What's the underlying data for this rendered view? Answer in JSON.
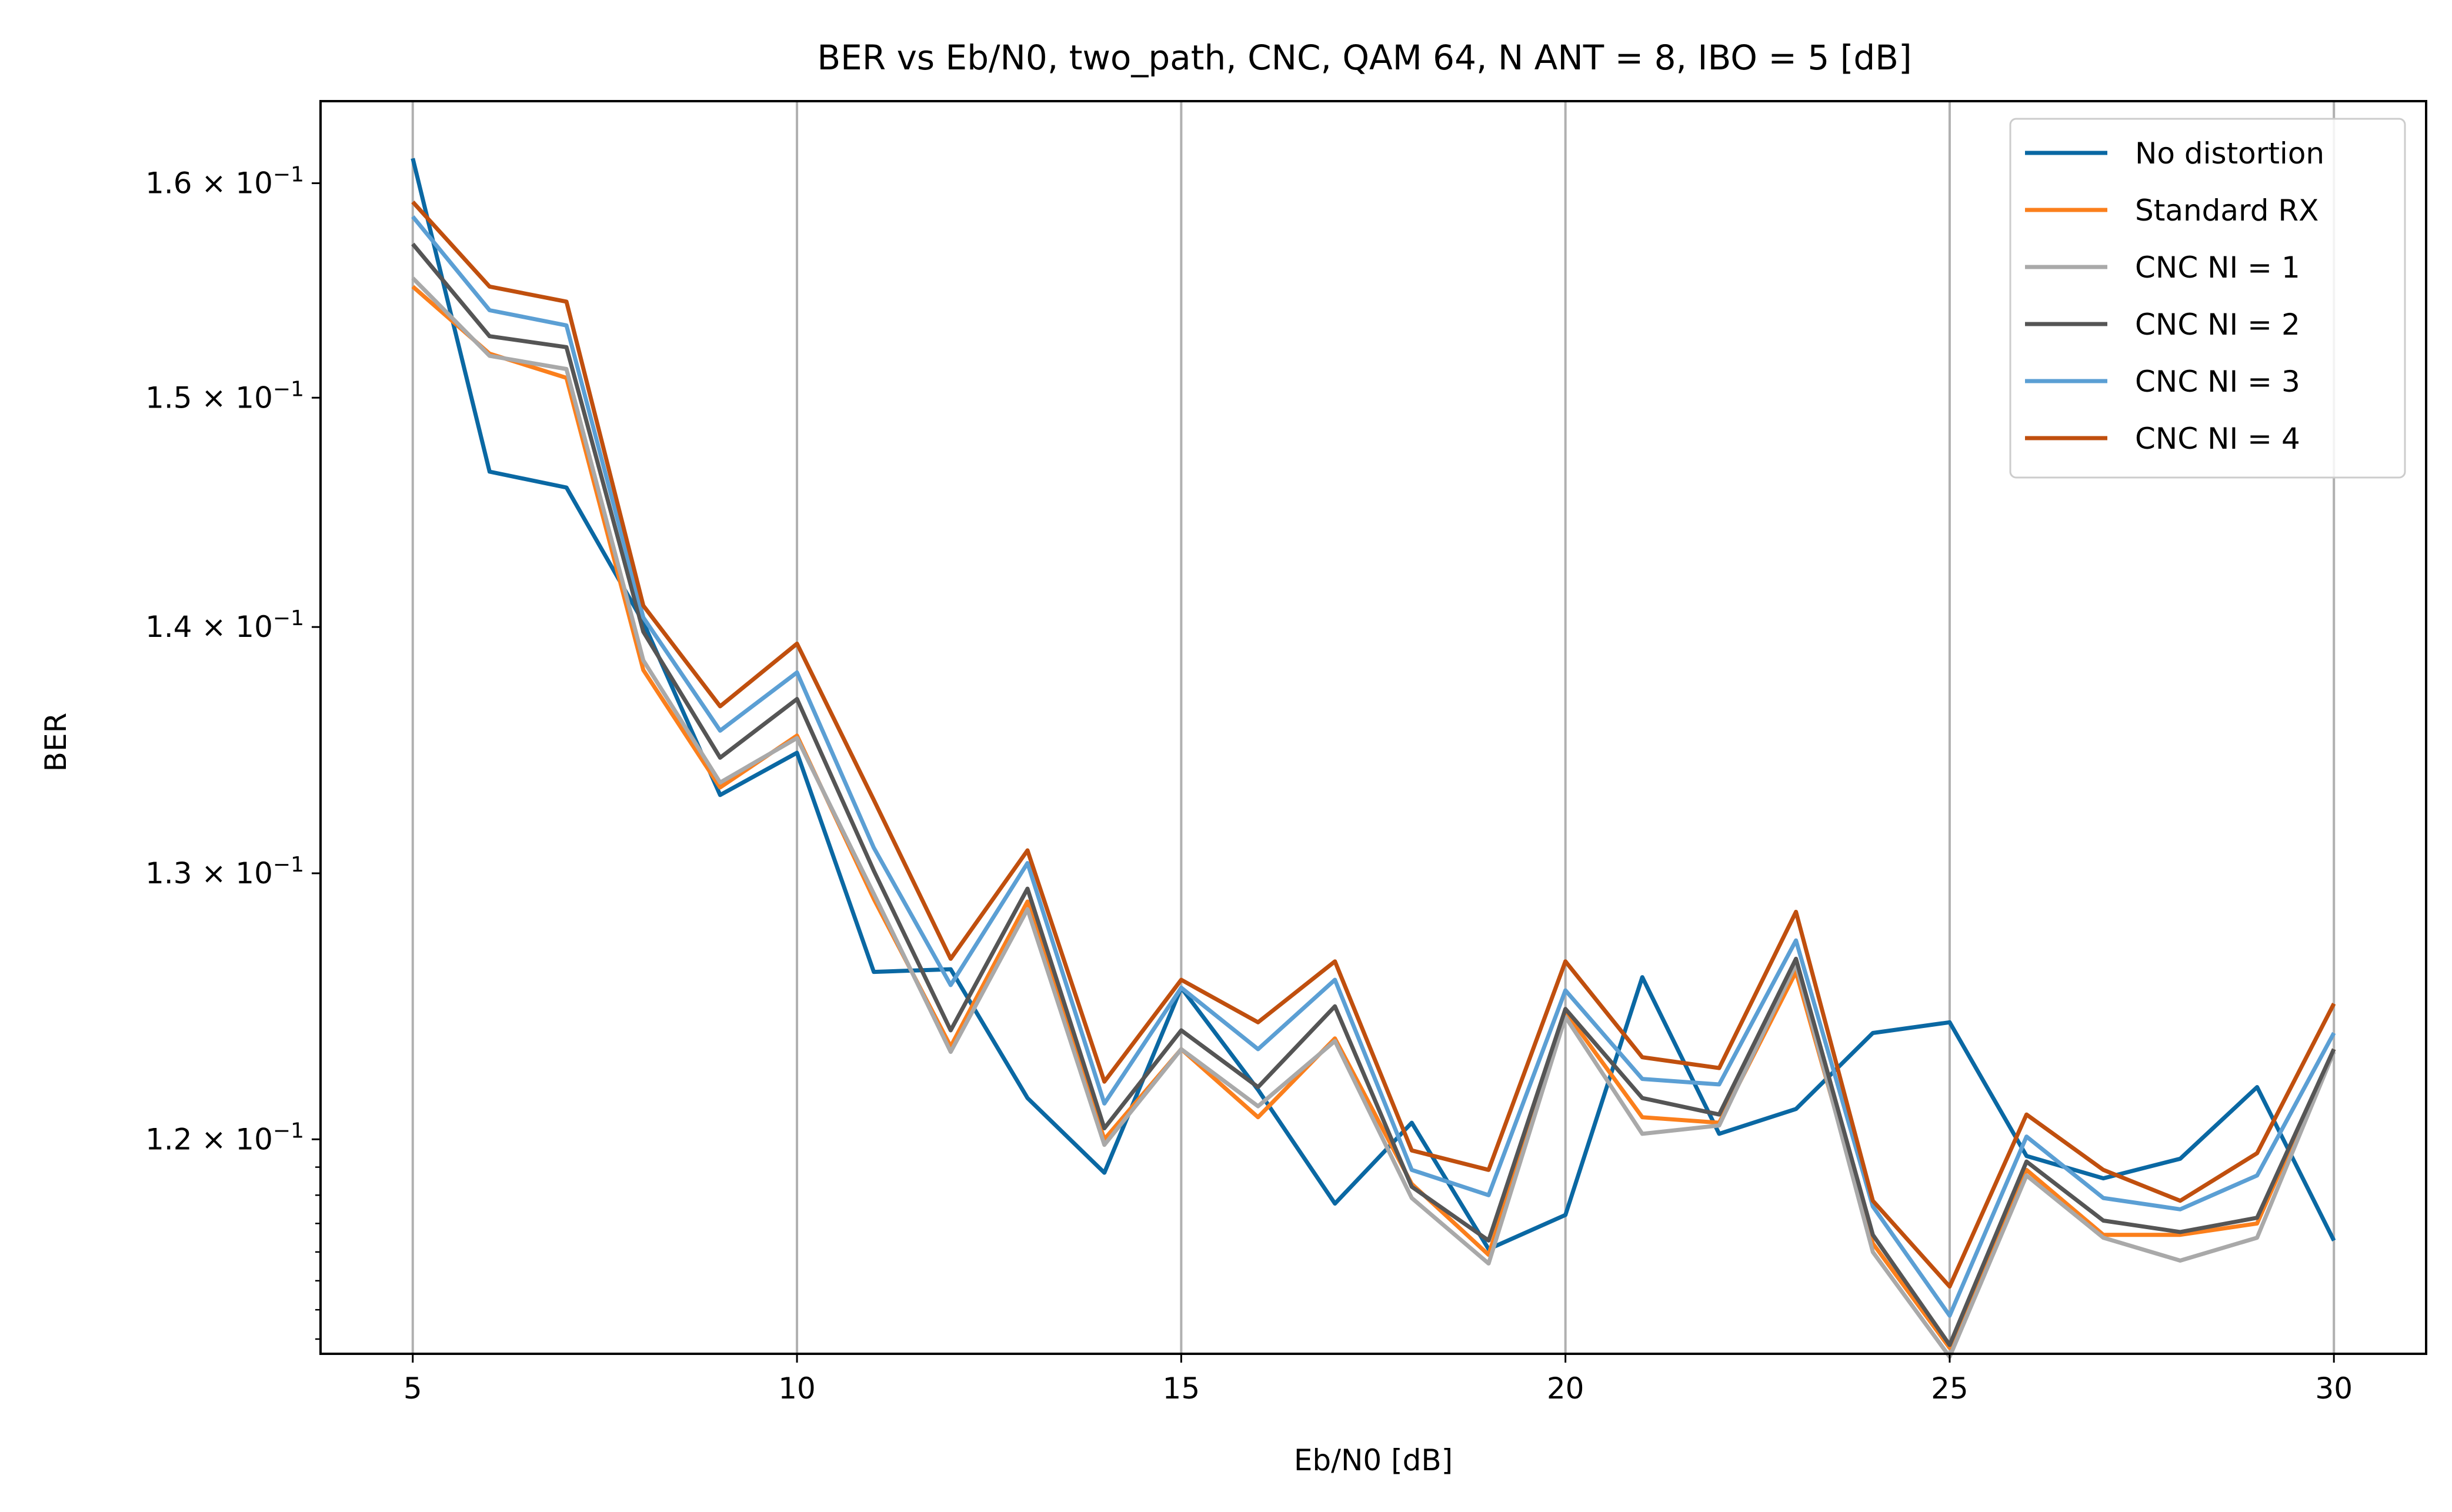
{
  "chart_data": {
    "type": "line",
    "title": "BER vs Eb/N0, two_path, CNC, QAM 64, N ANT = 8, IBO = 5 [dB]",
    "xlabel": "Eb/N0 [dB]",
    "ylabel": "BER",
    "y_scale": "log",
    "xlim": [
      3.8,
      31.2
    ],
    "ylim": [
      0.1125,
      0.164
    ],
    "grid": "vertical major lines",
    "legend_position": "upper-right",
    "x_ticks": [
      5,
      10,
      15,
      20,
      25,
      30
    ],
    "y_ticks": [
      {
        "value": 0.12,
        "label": "1.2 × 10^-1"
      },
      {
        "value": 0.13,
        "label": "1.3 × 10^-1"
      },
      {
        "value": 0.14,
        "label": "1.4 × 10^-1"
      },
      {
        "value": 0.15,
        "label": "1.5 × 10^-1"
      },
      {
        "value": 0.16,
        "label": "1.6 × 10^-1"
      }
    ],
    "x": [
      5,
      6,
      7,
      8,
      9,
      10,
      11,
      12,
      13,
      14,
      15,
      16,
      17,
      18,
      19,
      20,
      21,
      22,
      23,
      24,
      25,
      26,
      27,
      28,
      29,
      30
    ],
    "series": [
      {
        "name": "No distortion",
        "color": "#0a68a3",
        "values": [
          0.1612,
          0.1467,
          0.146,
          0.1402,
          0.1331,
          0.1348,
          0.1262,
          0.1263,
          0.1215,
          0.1188,
          0.1256,
          0.1218,
          0.1177,
          0.1206,
          0.1161,
          0.1173,
          0.126,
          0.1202,
          0.1211,
          0.1239,
          0.1243,
          0.1194,
          0.1186,
          0.1193,
          0.1219,
          0.1164
        ]
      },
      {
        "name": "Standard RX",
        "color": "#fb7f1c",
        "values": [
          0.1551,
          0.152,
          0.1509,
          0.1382,
          0.1334,
          0.1355,
          0.129,
          0.1234,
          0.1289,
          0.12,
          0.1233,
          0.1208,
          0.1237,
          0.1184,
          0.1159,
          0.1247,
          0.1208,
          0.1206,
          0.1262,
          0.1163,
          0.1127,
          0.1189,
          0.1166,
          0.1166,
          0.117,
          0.1233
        ]
      },
      {
        "name": "CNC NI = 1",
        "color": "#a9a9a9",
        "values": [
          0.1555,
          0.1519,
          0.1513,
          0.1386,
          0.1336,
          0.1354,
          0.1292,
          0.1232,
          0.1286,
          0.1198,
          0.1233,
          0.1212,
          0.1236,
          0.1179,
          0.1156,
          0.1245,
          0.1202,
          0.1205,
          0.1265,
          0.116,
          0.1124,
          0.1187,
          0.1165,
          0.1157,
          0.1165,
          0.1232
        ]
      },
      {
        "name": "CNC NI = 2",
        "color": "#555555",
        "values": [
          0.1571,
          0.1528,
          0.1523,
          0.1398,
          0.1346,
          0.137,
          0.1301,
          0.124,
          0.1294,
          0.1204,
          0.124,
          0.1219,
          0.1249,
          0.1183,
          0.1164,
          0.1248,
          0.1215,
          0.1209,
          0.1267,
          0.1166,
          0.1128,
          0.1192,
          0.1171,
          0.1167,
          0.1172,
          0.1233
        ]
      },
      {
        "name": "CNC NI = 3",
        "color": "#5b9fd4",
        "values": [
          0.1584,
          0.154,
          0.1533,
          0.1404,
          0.1357,
          0.1381,
          0.131,
          0.1257,
          0.1304,
          0.1213,
          0.1256,
          0.1233,
          0.1259,
          0.1189,
          0.118,
          0.1255,
          0.1222,
          0.122,
          0.1274,
          0.1176,
          0.1138,
          0.1201,
          0.1179,
          0.1175,
          0.1187,
          0.1239
        ]
      },
      {
        "name": "CNC NI = 4",
        "color": "#c04f0e",
        "values": [
          0.1591,
          0.1551,
          0.1544,
          0.1409,
          0.1367,
          0.1393,
          0.1329,
          0.1267,
          0.1309,
          0.1221,
          0.1259,
          0.1243,
          0.1266,
          0.1196,
          0.1189,
          0.1266,
          0.123,
          0.1226,
          0.1285,
          0.1178,
          0.1148,
          0.1209,
          0.1189,
          0.1178,
          0.1195,
          0.125
        ]
      }
    ]
  }
}
